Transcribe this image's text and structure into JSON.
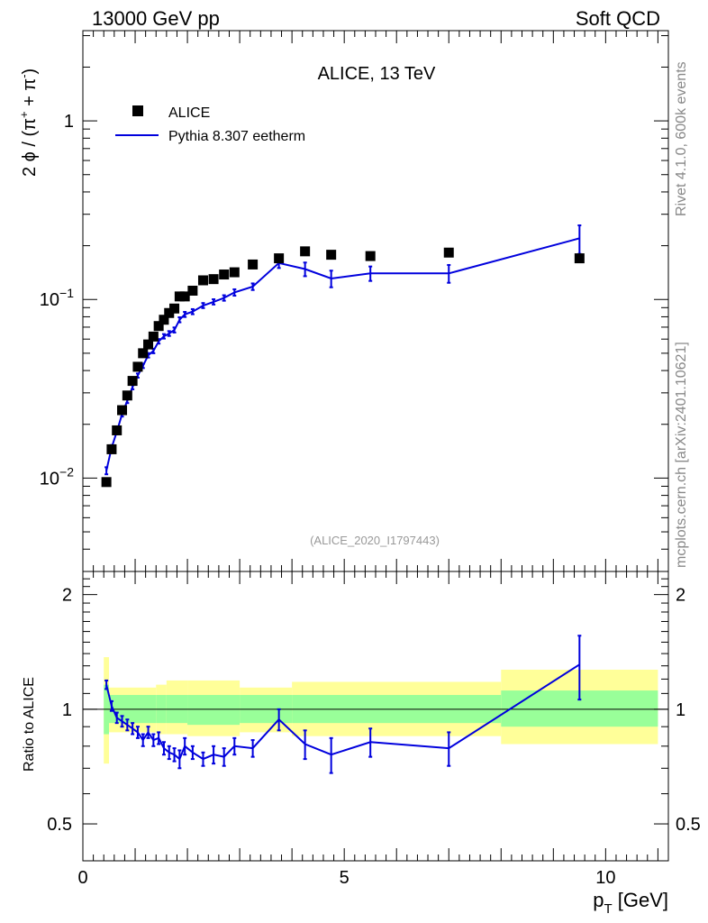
{
  "header": {
    "left": "13000 GeV pp",
    "right": "Soft QCD"
  },
  "side_labels": {
    "top": "Rivet 4.1.0,  600k events",
    "bottom": "mcplots.cern.ch [arXiv:2401.10621]"
  },
  "colors": {
    "mc": "#0000dd",
    "data": "#000000",
    "band_inner": "#99ff99",
    "band_outer": "#ffff99",
    "ref_label": "#999999"
  },
  "chart_data": [
    {
      "type": "scatter",
      "title": "ALICE, 13 TeV",
      "ylabel": "2 ϕ / (π⁺ + π⁻)",
      "ylabel_parts": {
        "prefix": "2 ϕ / (π",
        "sup1": "+",
        "mid": " + π",
        "sup2": "-",
        "suffix": ")"
      },
      "yscale": "log",
      "xlim": [
        0,
        11.2
      ],
      "ylim": [
        0.003,
        3.2
      ],
      "yticks": [
        {
          "value": 1,
          "label": "1",
          "base": "",
          "exp": ""
        },
        {
          "value": 0.1,
          "label": "",
          "base": "10",
          "exp": "−1"
        },
        {
          "value": 0.01,
          "label": "",
          "base": "10",
          "exp": "−2"
        }
      ],
      "legend": {
        "position": "top-left",
        "entries": [
          "ALICE",
          "Pythia 8.307 eetherm"
        ]
      },
      "ref_label": "(ALICE_2020_I1797443)",
      "series": [
        {
          "name": "ALICE",
          "x": [
            0.45,
            0.55,
            0.65,
            0.75,
            0.85,
            0.95,
            1.05,
            1.15,
            1.25,
            1.35,
            1.45,
            1.55,
            1.65,
            1.75,
            1.85,
            1.95,
            2.1,
            2.3,
            2.5,
            2.7,
            2.9,
            3.25,
            3.75,
            4.25,
            4.75,
            5.5,
            7.0,
            9.5
          ],
          "y": [
            0.0095,
            0.0145,
            0.0185,
            0.024,
            0.029,
            0.035,
            0.042,
            0.05,
            0.056,
            0.062,
            0.071,
            0.077,
            0.084,
            0.089,
            0.104,
            0.104,
            0.112,
            0.128,
            0.13,
            0.138,
            0.142,
            0.157,
            0.17,
            0.186,
            0.178,
            0.175,
            0.183,
            0.17
          ]
        },
        {
          "name": "Pythia 8.307 eetherm",
          "x": [
            0.45,
            0.55,
            0.65,
            0.75,
            0.85,
            0.95,
            1.05,
            1.15,
            1.25,
            1.35,
            1.45,
            1.55,
            1.65,
            1.75,
            1.85,
            1.95,
            2.1,
            2.3,
            2.5,
            2.7,
            2.9,
            3.25,
            3.75,
            4.25,
            4.75,
            5.5,
            7.0,
            9.5
          ],
          "y": [
            0.011,
            0.0148,
            0.0182,
            0.0228,
            0.0271,
            0.0323,
            0.0375,
            0.0425,
            0.0487,
            0.0515,
            0.0583,
            0.0622,
            0.0645,
            0.0675,
            0.077,
            0.0825,
            0.0855,
            0.0925,
            0.097,
            0.102,
            0.1095,
            0.118,
            0.16,
            0.148,
            0.131,
            0.14,
            0.14,
            0.22
          ],
          "yerr": [
            0.0005,
            0.0005,
            0.0006,
            0.0007,
            0.0008,
            0.0009,
            0.001,
            0.0012,
            0.0014,
            0.0015,
            0.0017,
            0.0018,
            0.002,
            0.0022,
            0.0025,
            0.0027,
            0.0028,
            0.003,
            0.0033,
            0.0036,
            0.0045,
            0.005,
            0.01,
            0.013,
            0.014,
            0.013,
            0.016,
            0.04
          ]
        }
      ]
    },
    {
      "type": "line",
      "ylabel": "Ratio to ALICE",
      "xlabel": "p_T [GeV]",
      "xlabel_parts": {
        "main": "p",
        "sub": "T",
        "unit": " [GeV]"
      },
      "yscale": "log",
      "xlim": [
        0,
        11.2
      ],
      "ylim": [
        0.4,
        2.3
      ],
      "xticks": [
        0,
        5,
        10
      ],
      "yticks": [
        {
          "value": 0.5,
          "label": "0.5"
        },
        {
          "value": 1,
          "label": "1"
        },
        {
          "value": 2,
          "label": "2"
        }
      ],
      "reference_line": 1,
      "uncertainty_bands": [
        {
          "x0": 0.4,
          "x1": 0.5,
          "inner": [
            0.86,
            1.16
          ],
          "outer": [
            0.72,
            1.37
          ]
        },
        {
          "x0": 0.5,
          "x1": 1.4,
          "inner": [
            0.92,
            1.09
          ],
          "outer": [
            0.87,
            1.14
          ]
        },
        {
          "x0": 1.4,
          "x1": 1.6,
          "inner": [
            0.92,
            1.09
          ],
          "outer": [
            0.86,
            1.16
          ]
        },
        {
          "x0": 1.6,
          "x1": 2.0,
          "inner": [
            0.92,
            1.09
          ],
          "outer": [
            0.86,
            1.19
          ]
        },
        {
          "x0": 2.0,
          "x1": 3.0,
          "inner": [
            0.91,
            1.09
          ],
          "outer": [
            0.85,
            1.19
          ]
        },
        {
          "x0": 3.0,
          "x1": 4.0,
          "inner": [
            0.92,
            1.09
          ],
          "outer": [
            0.87,
            1.14
          ]
        },
        {
          "x0": 4.0,
          "x1": 8.0,
          "inner": [
            0.92,
            1.09
          ],
          "outer": [
            0.85,
            1.18
          ]
        },
        {
          "x0": 8.0,
          "x1": 11.0,
          "inner": [
            0.9,
            1.12
          ],
          "outer": [
            0.81,
            1.27
          ]
        }
      ],
      "series": [
        {
          "name": "Pythia 8.307 eetherm / ALICE",
          "x": [
            0.45,
            0.55,
            0.65,
            0.75,
            0.85,
            0.95,
            1.05,
            1.15,
            1.25,
            1.35,
            1.45,
            1.55,
            1.65,
            1.75,
            1.85,
            1.95,
            2.1,
            2.3,
            2.5,
            2.7,
            2.9,
            3.25,
            3.75,
            4.25,
            4.75,
            5.5,
            7.0,
            9.5
          ],
          "y": [
            1.16,
            1.02,
            0.95,
            0.93,
            0.91,
            0.89,
            0.87,
            0.83,
            0.87,
            0.83,
            0.84,
            0.79,
            0.77,
            0.76,
            0.74,
            0.8,
            0.77,
            0.74,
            0.76,
            0.75,
            0.8,
            0.79,
            0.94,
            0.81,
            0.76,
            0.82,
            0.79,
            1.31
          ],
          "yerr": [
            0.03,
            0.03,
            0.03,
            0.03,
            0.03,
            0.03,
            0.03,
            0.03,
            0.03,
            0.03,
            0.03,
            0.03,
            0.03,
            0.03,
            0.04,
            0.04,
            0.03,
            0.03,
            0.04,
            0.04,
            0.04,
            0.04,
            0.06,
            0.07,
            0.08,
            0.07,
            0.08,
            0.25
          ]
        }
      ]
    }
  ]
}
